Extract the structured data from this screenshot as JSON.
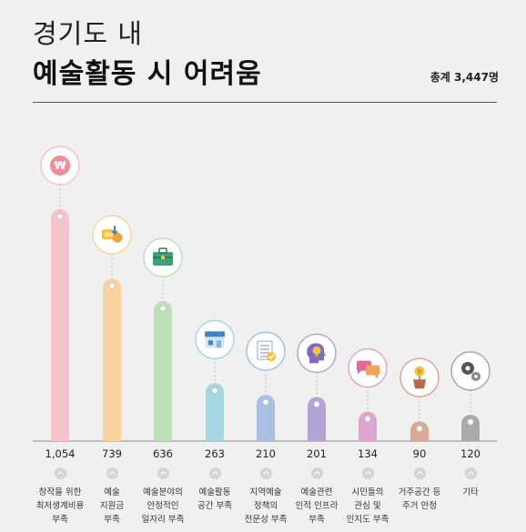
{
  "header": {
    "title_line1": "경기도 내",
    "title_line2": "예술활동 시 어려움",
    "total": "총계 3,447명"
  },
  "chart_data": {
    "type": "bar",
    "title": "경기도 내 예술활동 시 어려움",
    "total": "총계 3,447명",
    "categories": [
      "창작을 위한\n최저생계비용\n부족",
      "예술\n지원금\n부족",
      "예술분야의\n안정적인\n일자리 부족",
      "예술활동\n공간 부족",
      "지역예술\n정책의\n전문성 부족",
      "예술관련\n인적 인프라\n부족",
      "시민들의\n관심 및\n인지도 부족",
      "거주공간 등\n주거 안정",
      "기타"
    ],
    "values": [
      1054,
      739,
      636,
      263,
      210,
      201,
      134,
      90,
      120
    ],
    "value_labels": [
      "1,054",
      "739",
      "636",
      "263",
      "210",
      "201",
      "134",
      "90",
      "120"
    ],
    "colors": [
      "#f6c3ca",
      "#f8d49c",
      "#bfdfbb",
      "#a5d7e1",
      "#a9bfe3",
      "#b2a5d6",
      "#dba7cf",
      "#d7a996",
      "#aaaaaa"
    ],
    "icons": [
      "won-coin-icon",
      "money-transfer-icon",
      "briefcase-icon",
      "storefront-icon",
      "policy-document-icon",
      "head-idea-icon",
      "speech-bubbles-icon",
      "flower-pot-icon",
      "gears-icon"
    ],
    "ylim": [
      0,
      1054
    ]
  }
}
